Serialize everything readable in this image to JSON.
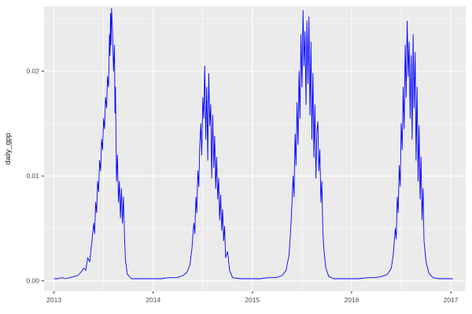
{
  "chart_data": {
    "type": "line",
    "title": "",
    "xlabel": "",
    "ylabel": "daily_gpp",
    "xlim": [
      2012.9,
      2017.15
    ],
    "ylim": [
      -0.001,
      0.0262
    ],
    "grid": "on",
    "legend": "none",
    "x_ticks": [
      {
        "value": 2013,
        "label": "2013"
      },
      {
        "value": 2014,
        "label": "2014"
      },
      {
        "value": 2015,
        "label": "2015"
      },
      {
        "value": 2016,
        "label": "2016"
      },
      {
        "value": 2017,
        "label": "2017"
      }
    ],
    "y_ticks": [
      {
        "value": 0.0,
        "label": "0.00"
      },
      {
        "value": 0.01,
        "label": "0.01"
      },
      {
        "value": 0.02,
        "label": "0.02"
      }
    ],
    "x_minor": [
      2013.5,
      2014.5,
      2015.5,
      2016.5
    ],
    "y_minor": [
      0.005,
      0.015,
      0.025
    ],
    "colors": {
      "line": "#0000FF",
      "panel": "#EBEBEB",
      "grid_major": "#FFFFFF",
      "grid_minor": "#FFFFFF",
      "axis_text": "#4D4D4D",
      "axis_title": "#1A1A1A",
      "tick_mark": "#333333"
    },
    "series": [
      {
        "name": "daily_gpp",
        "points": [
          [
            2013.0,
            0.0002
          ],
          [
            2013.04,
            0.0002
          ],
          [
            2013.08,
            0.0003
          ],
          [
            2013.12,
            0.0002
          ],
          [
            2013.16,
            0.0003
          ],
          [
            2013.2,
            0.0004
          ],
          [
            2013.24,
            0.0005
          ],
          [
            2013.27,
            0.0008
          ],
          [
            2013.3,
            0.0012
          ],
          [
            2013.32,
            0.001
          ],
          [
            2013.34,
            0.0022
          ],
          [
            2013.36,
            0.0018
          ],
          [
            2013.38,
            0.0035
          ],
          [
            2013.4,
            0.0055
          ],
          [
            2013.41,
            0.0045
          ],
          [
            2013.42,
            0.0075
          ],
          [
            2013.43,
            0.0065
          ],
          [
            2013.44,
            0.0095
          ],
          [
            2013.45,
            0.0085
          ],
          [
            2013.46,
            0.0115
          ],
          [
            2013.47,
            0.0105
          ],
          [
            2013.48,
            0.0135
          ],
          [
            2013.49,
            0.0125
          ],
          [
            2013.5,
            0.0155
          ],
          [
            2013.51,
            0.0145
          ],
          [
            2013.52,
            0.0175
          ],
          [
            2013.53,
            0.0165
          ],
          [
            2013.54,
            0.0195
          ],
          [
            2013.55,
            0.0185
          ],
          [
            2013.56,
            0.0235
          ],
          [
            2013.565,
            0.0215
          ],
          [
            2013.57,
            0.0255
          ],
          [
            2013.575,
            0.0225
          ],
          [
            2013.58,
            0.026
          ],
          [
            2013.59,
            0.024
          ],
          [
            2013.6,
            0.02
          ],
          [
            2013.61,
            0.0225
          ],
          [
            2013.615,
            0.016
          ],
          [
            2013.62,
            0.0185
          ],
          [
            2013.63,
            0.0095
          ],
          [
            2013.64,
            0.012
          ],
          [
            2013.65,
            0.0075
          ],
          [
            2013.66,
            0.0095
          ],
          [
            2013.67,
            0.006
          ],
          [
            2013.68,
            0.0088
          ],
          [
            2013.69,
            0.0055
          ],
          [
            2013.7,
            0.008
          ],
          [
            2013.71,
            0.0045
          ],
          [
            2013.72,
            0.002
          ],
          [
            2013.74,
            0.0006
          ],
          [
            2013.78,
            0.0002
          ],
          [
            2013.85,
            0.0002
          ],
          [
            2013.95,
            0.0002
          ],
          [
            2014.0,
            0.0002
          ],
          [
            2014.08,
            0.0002
          ],
          [
            2014.16,
            0.0003
          ],
          [
            2014.24,
            0.0003
          ],
          [
            2014.3,
            0.0005
          ],
          [
            2014.34,
            0.0008
          ],
          [
            2014.37,
            0.0015
          ],
          [
            2014.39,
            0.003
          ],
          [
            2014.41,
            0.0055
          ],
          [
            2014.42,
            0.0045
          ],
          [
            2014.43,
            0.008
          ],
          [
            2014.44,
            0.0065
          ],
          [
            2014.45,
            0.0105
          ],
          [
            2014.46,
            0.009
          ],
          [
            2014.47,
            0.013
          ],
          [
            2014.48,
            0.015
          ],
          [
            2014.49,
            0.012
          ],
          [
            2014.5,
            0.0175
          ],
          [
            2014.51,
            0.0155
          ],
          [
            2014.52,
            0.0205
          ],
          [
            2014.53,
            0.0135
          ],
          [
            2014.54,
            0.0185
          ],
          [
            2014.55,
            0.0115
          ],
          [
            2014.56,
            0.0198
          ],
          [
            2014.57,
            0.0148
          ],
          [
            2014.58,
            0.0168
          ],
          [
            2014.59,
            0.0098
          ],
          [
            2014.6,
            0.0158
          ],
          [
            2014.61,
            0.0108
          ],
          [
            2014.62,
            0.0138
          ],
          [
            2014.63,
            0.0088
          ],
          [
            2014.64,
            0.0118
          ],
          [
            2014.65,
            0.0078
          ],
          [
            2014.66,
            0.0098
          ],
          [
            2014.67,
            0.0058
          ],
          [
            2014.68,
            0.0082
          ],
          [
            2014.69,
            0.0048
          ],
          [
            2014.7,
            0.0068
          ],
          [
            2014.71,
            0.0038
          ],
          [
            2014.72,
            0.0052
          ],
          [
            2014.73,
            0.0022
          ],
          [
            2014.75,
            0.0028
          ],
          [
            2014.77,
            0.001
          ],
          [
            2014.8,
            0.0003
          ],
          [
            2014.88,
            0.0002
          ],
          [
            2014.96,
            0.0002
          ],
          [
            2015.0,
            0.0002
          ],
          [
            2015.08,
            0.0002
          ],
          [
            2015.16,
            0.0003
          ],
          [
            2015.24,
            0.0003
          ],
          [
            2015.3,
            0.0005
          ],
          [
            2015.34,
            0.001
          ],
          [
            2015.37,
            0.0025
          ],
          [
            2015.39,
            0.0055
          ],
          [
            2015.41,
            0.01
          ],
          [
            2015.42,
            0.008
          ],
          [
            2015.43,
            0.014
          ],
          [
            2015.44,
            0.011
          ],
          [
            2015.45,
            0.017
          ],
          [
            2015.46,
            0.013
          ],
          [
            2015.47,
            0.02
          ],
          [
            2015.48,
            0.0155
          ],
          [
            2015.49,
            0.0235
          ],
          [
            2015.5,
            0.0185
          ],
          [
            2015.51,
            0.0258
          ],
          [
            2015.52,
            0.0205
          ],
          [
            2015.53,
            0.0238
          ],
          [
            2015.54,
            0.0168
          ],
          [
            2015.55,
            0.0248
          ],
          [
            2015.56,
            0.0188
          ],
          [
            2015.57,
            0.0252
          ],
          [
            2015.58,
            0.0158
          ],
          [
            2015.59,
            0.0228
          ],
          [
            2015.6,
            0.0135
          ],
          [
            2015.61,
            0.0198
          ],
          [
            2015.62,
            0.0118
          ],
          [
            2015.63,
            0.0168
          ],
          [
            2015.64,
            0.0098
          ],
          [
            2015.65,
            0.0142
          ],
          [
            2015.66,
            0.0152
          ],
          [
            2015.67,
            0.0105
          ],
          [
            2015.68,
            0.0125
          ],
          [
            2015.69,
            0.0075
          ],
          [
            2015.7,
            0.0095
          ],
          [
            2015.71,
            0.0048
          ],
          [
            2015.72,
            0.003
          ],
          [
            2015.74,
            0.0012
          ],
          [
            2015.77,
            0.0004
          ],
          [
            2015.82,
            0.0002
          ],
          [
            2015.9,
            0.0002
          ],
          [
            2015.97,
            0.0002
          ],
          [
            2016.0,
            0.0002
          ],
          [
            2016.08,
            0.0002
          ],
          [
            2016.16,
            0.0003
          ],
          [
            2016.24,
            0.0003
          ],
          [
            2016.3,
            0.0004
          ],
          [
            2016.36,
            0.0006
          ],
          [
            2016.4,
            0.0012
          ],
          [
            2016.42,
            0.0025
          ],
          [
            2016.44,
            0.005
          ],
          [
            2016.45,
            0.004
          ],
          [
            2016.46,
            0.008
          ],
          [
            2016.47,
            0.0065
          ],
          [
            2016.48,
            0.011
          ],
          [
            2016.49,
            0.009
          ],
          [
            2016.5,
            0.015
          ],
          [
            2016.51,
            0.0125
          ],
          [
            2016.52,
            0.0185
          ],
          [
            2016.53,
            0.0145
          ],
          [
            2016.54,
            0.0225
          ],
          [
            2016.55,
            0.0175
          ],
          [
            2016.56,
            0.0248
          ],
          [
            2016.57,
            0.0195
          ],
          [
            2016.58,
            0.0228
          ],
          [
            2016.59,
            0.0155
          ],
          [
            2016.6,
            0.0215
          ],
          [
            2016.61,
            0.0135
          ],
          [
            2016.62,
            0.0235
          ],
          [
            2016.63,
            0.0165
          ],
          [
            2016.64,
            0.0218
          ],
          [
            2016.65,
            0.0115
          ],
          [
            2016.66,
            0.0185
          ],
          [
            2016.67,
            0.0095
          ],
          [
            2016.68,
            0.0148
          ],
          [
            2016.69,
            0.0078
          ],
          [
            2016.7,
            0.0118
          ],
          [
            2016.71,
            0.0058
          ],
          [
            2016.72,
            0.0088
          ],
          [
            2016.73,
            0.0038
          ],
          [
            2016.75,
            0.0018
          ],
          [
            2016.78,
            0.0007
          ],
          [
            2016.82,
            0.0003
          ],
          [
            2016.88,
            0.0002
          ],
          [
            2016.94,
            0.0002
          ],
          [
            2017.0,
            0.0002
          ],
          [
            2017.02,
            0.0002
          ]
        ]
      }
    ]
  }
}
